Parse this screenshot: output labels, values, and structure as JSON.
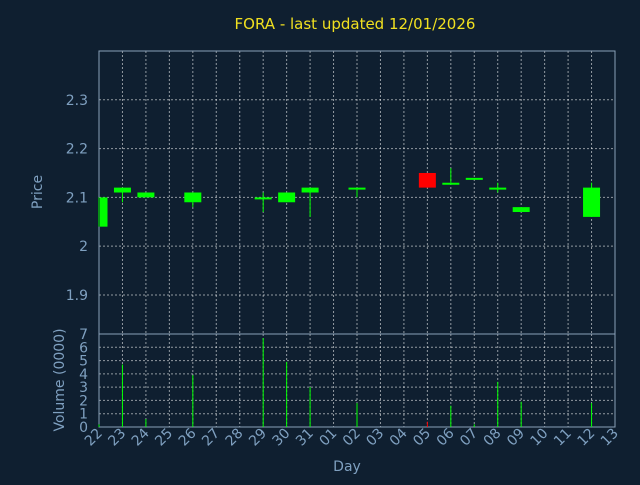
{
  "chart_data": {
    "type": "candlestick",
    "title": "FORA - last updated 12/01/2026",
    "price_panel": {
      "ylabel": "Price",
      "ylim": [
        1.82,
        2.4
      ],
      "yticks": [
        "1.9",
        "2",
        "2.1",
        "2.2",
        "2.3"
      ],
      "ytick_values": [
        1.9,
        2.0,
        2.1,
        2.2,
        2.3
      ],
      "grid": true
    },
    "volume_panel": {
      "ylabel": "Volume (0000)",
      "ylim": [
        0,
        7
      ],
      "yticks": [
        "0",
        "1",
        "2",
        "3",
        "4",
        "5",
        "6",
        "7"
      ],
      "ytick_values": [
        0,
        1,
        2,
        3,
        4,
        5,
        6,
        7
      ],
      "grid": true
    },
    "xlabel": "Day",
    "x_ticks": [
      "22",
      "23",
      "24",
      "25",
      "26",
      "27",
      "28",
      "29",
      "30",
      "31",
      "01",
      "02",
      "03",
      "04",
      "05",
      "06",
      "07",
      "08",
      "09",
      "10",
      "11",
      "12",
      "13"
    ],
    "up_color": "#00ff00",
    "down_color": "#ff0000",
    "candles": [
      {
        "day": "22",
        "open": 2.04,
        "high": 2.1,
        "low": 2.04,
        "close": 2.1,
        "volume": 0.2
      },
      {
        "day": "23",
        "open": 2.11,
        "high": 2.12,
        "low": 2.09,
        "close": 2.12,
        "volume": 4.7
      },
      {
        "day": "24",
        "open": 2.1,
        "high": 2.11,
        "low": 2.1,
        "close": 2.11,
        "volume": 0.6
      },
      {
        "day": "26",
        "open": 2.09,
        "high": 2.11,
        "low": 2.08,
        "close": 2.11,
        "volume": 3.9
      },
      {
        "day": "29",
        "open": 2.1,
        "high": 2.11,
        "low": 2.07,
        "close": 2.1,
        "volume": 6.7
      },
      {
        "day": "30",
        "open": 2.09,
        "high": 2.11,
        "low": 2.09,
        "close": 2.11,
        "volume": 4.9
      },
      {
        "day": "31",
        "open": 2.11,
        "high": 2.12,
        "low": 2.06,
        "close": 2.12,
        "volume": 3.0
      },
      {
        "day": "02",
        "open": 2.12,
        "high": 2.12,
        "low": 2.1,
        "close": 2.12,
        "volume": 1.8
      },
      {
        "day": "05",
        "open": 2.15,
        "high": 2.15,
        "low": 2.12,
        "close": 2.12,
        "volume": 0.4
      },
      {
        "day": "06",
        "open": 2.13,
        "high": 2.16,
        "low": 2.13,
        "close": 2.13,
        "volume": 1.6
      },
      {
        "day": "07",
        "open": 2.14,
        "high": 2.14,
        "low": 2.14,
        "close": 2.14,
        "volume": 0.2
      },
      {
        "day": "08",
        "open": 2.12,
        "high": 2.13,
        "low": 2.11,
        "close": 2.12,
        "volume": 3.4
      },
      {
        "day": "09",
        "open": 2.07,
        "high": 2.08,
        "low": 2.07,
        "close": 2.08,
        "volume": 1.9
      },
      {
        "day": "12",
        "open": 2.06,
        "high": 2.13,
        "low": 2.06,
        "close": 2.12,
        "volume": 1.8
      }
    ]
  }
}
